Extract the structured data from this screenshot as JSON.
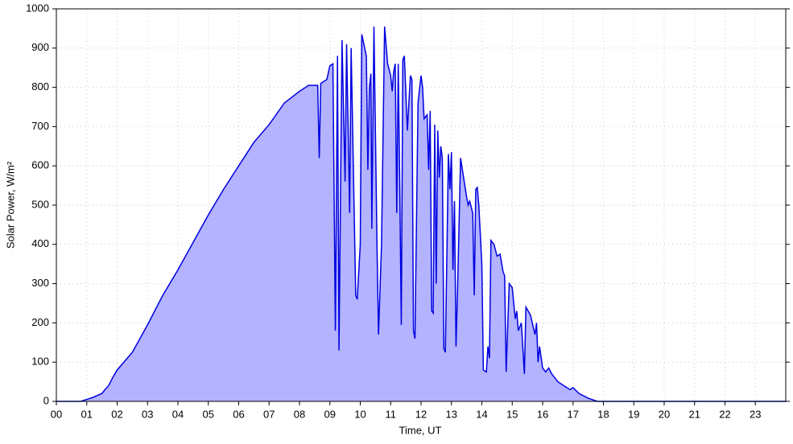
{
  "chart_data": {
    "type": "area",
    "xlabel": "Time, UT",
    "ylabel": "Solar Power, W/m²",
    "xlim": [
      0,
      24
    ],
    "ylim": [
      0,
      1000
    ],
    "xticks": [
      {
        "value": 0,
        "label": "00"
      },
      {
        "value": 1,
        "label": "01"
      },
      {
        "value": 2,
        "label": "02"
      },
      {
        "value": 3,
        "label": "03"
      },
      {
        "value": 4,
        "label": "04"
      },
      {
        "value": 5,
        "label": "05"
      },
      {
        "value": 6,
        "label": "06"
      },
      {
        "value": 7,
        "label": "07"
      },
      {
        "value": 8,
        "label": "08"
      },
      {
        "value": 9,
        "label": "09"
      },
      {
        "value": 10,
        "label": "10"
      },
      {
        "value": 11,
        "label": "11"
      },
      {
        "value": 12,
        "label": "12"
      },
      {
        "value": 13,
        "label": "13"
      },
      {
        "value": 14,
        "label": "14"
      },
      {
        "value": 15,
        "label": "15"
      },
      {
        "value": 16,
        "label": "16"
      },
      {
        "value": 17,
        "label": "17"
      },
      {
        "value": 18,
        "label": "18"
      },
      {
        "value": 19,
        "label": "19"
      },
      {
        "value": 20,
        "label": "20"
      },
      {
        "value": 21,
        "label": "21"
      },
      {
        "value": 22,
        "label": "22"
      },
      {
        "value": 23,
        "label": "23"
      }
    ],
    "yticks": [
      0,
      100,
      200,
      300,
      400,
      500,
      600,
      700,
      800,
      900,
      1000
    ],
    "grid": true,
    "series": [
      {
        "color": "#0000e0",
        "fill": "#b3b3ff",
        "x": [
          0,
          0.8,
          1,
          1.2,
          1.5,
          1.6,
          1.72,
          1.85,
          2,
          2.5,
          3,
          3.5,
          4,
          4.5,
          5,
          5.5,
          6,
          6.5,
          7,
          7.5,
          8,
          8.3,
          8.6,
          8.65,
          8.7,
          8.9,
          9,
          9.1,
          9.18,
          9.25,
          9.3,
          9.4,
          9.5,
          9.55,
          9.65,
          9.7,
          9.85,
          9.9,
          10,
          10.05,
          10.2,
          10.25,
          10.3,
          10.35,
          10.38,
          10.45,
          10.55,
          10.6,
          10.7,
          10.8,
          10.9,
          11,
          11.05,
          11.1,
          11.15,
          11.2,
          11.25,
          11.3,
          11.35,
          11.4,
          11.45,
          11.55,
          11.65,
          11.7,
          11.75,
          11.8,
          11.9,
          12,
          12.05,
          12.1,
          12.2,
          12.25,
          12.3,
          12.35,
          12.4,
          12.45,
          12.5,
          12.55,
          12.6,
          12.65,
          12.7,
          12.75,
          12.8,
          12.9,
          12.95,
          13,
          13.05,
          13.1,
          13.15,
          13.2,
          13.3,
          13.4,
          13.5,
          13.55,
          13.6,
          13.7,
          13.75,
          13.8,
          13.85,
          13.9,
          14,
          14.05,
          14.15,
          14.2,
          14.25,
          14.3,
          14.4,
          14.5,
          14.6,
          14.7,
          14.75,
          14.8,
          14.9,
          15,
          15.05,
          15.1,
          15.15,
          15.2,
          15.3,
          15.4,
          15.45,
          15.6,
          15.75,
          15.8,
          15.85,
          15.9,
          16,
          16.1,
          16.2,
          16.3,
          16.5,
          16.7,
          16.9,
          17,
          17.2,
          17.5,
          17.8,
          24
        ],
        "values": [
          0,
          0,
          5,
          10,
          20,
          30,
          40,
          60,
          80,
          125,
          195,
          270,
          335,
          405,
          475,
          540,
          600,
          660,
          705,
          760,
          790,
          805,
          805,
          620,
          810,
          820,
          855,
          860,
          180,
          880,
          130,
          920,
          560,
          910,
          480,
          900,
          270,
          260,
          400,
          935,
          880,
          590,
          800,
          835,
          440,
          955,
          400,
          170,
          400,
          955,
          860,
          830,
          790,
          840,
          860,
          480,
          860,
          540,
          195,
          870,
          880,
          690,
          830,
          820,
          180,
          160,
          760,
          830,
          800,
          720,
          730,
          590,
          740,
          230,
          225,
          705,
          300,
          690,
          570,
          650,
          620,
          135,
          125,
          630,
          540,
          635,
          335,
          510,
          140,
          280,
          620,
          570,
          520,
          500,
          510,
          480,
          270,
          540,
          545,
          500,
          350,
          80,
          75,
          140,
          110,
          410,
          400,
          370,
          375,
          330,
          320,
          75,
          300,
          290,
          250,
          210,
          230,
          180,
          200,
          70,
          240,
          220,
          170,
          200,
          100,
          140,
          85,
          75,
          85,
          70,
          50,
          40,
          30,
          35,
          20,
          8,
          0,
          0
        ]
      }
    ]
  }
}
